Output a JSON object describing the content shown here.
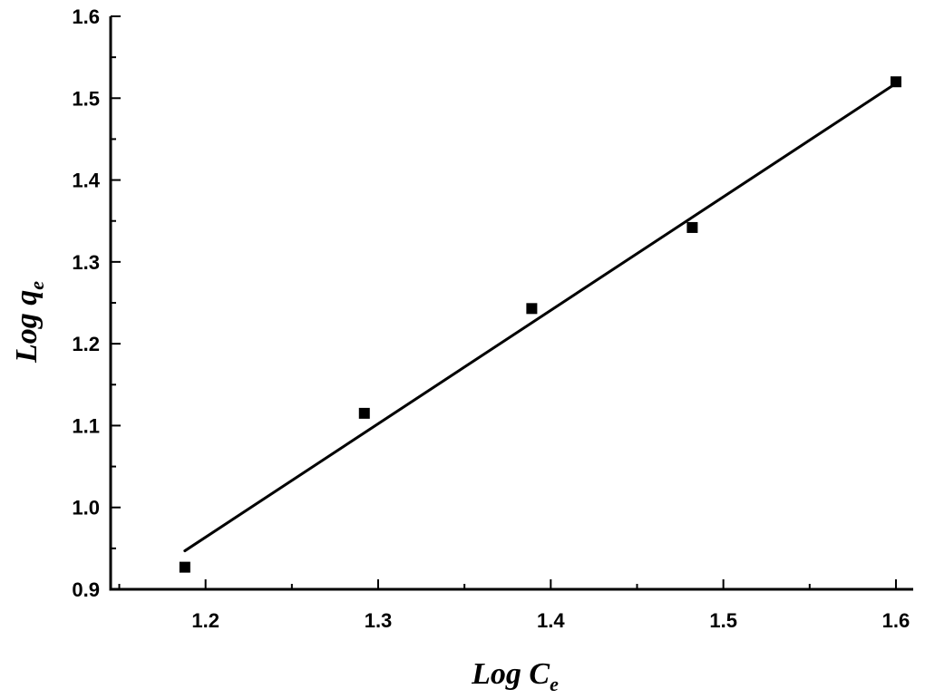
{
  "chart_data": {
    "type": "scatter",
    "xlabel": {
      "main": "Log C",
      "sub": "e"
    },
    "ylabel": {
      "main": "Log q",
      "sub": "e"
    },
    "xlim": [
      1.145,
      1.61
    ],
    "ylim": [
      0.9,
      1.6
    ],
    "x_ticks": [
      "1.2",
      "1.3",
      "1.4",
      "1.5",
      "1.6"
    ],
    "y_ticks": [
      "0.9",
      "1.0",
      "1.1",
      "1.2",
      "1.3",
      "1.4",
      "1.5",
      "1.6"
    ],
    "series": [
      {
        "type": "scatter",
        "marker": "square",
        "points": [
          {
            "x": 1.188,
            "y": 0.927
          },
          {
            "x": 1.292,
            "y": 1.115
          },
          {
            "x": 1.389,
            "y": 1.243
          },
          {
            "x": 1.482,
            "y": 1.342
          },
          {
            "x": 1.6,
            "y": 1.52
          }
        ]
      },
      {
        "type": "line",
        "points": [
          {
            "x": 1.188,
            "y": 0.947
          },
          {
            "x": 1.6,
            "y": 1.518
          }
        ]
      }
    ],
    "grid": false,
    "colors": {
      "ink": "#000000",
      "background": "#ffffff"
    }
  }
}
